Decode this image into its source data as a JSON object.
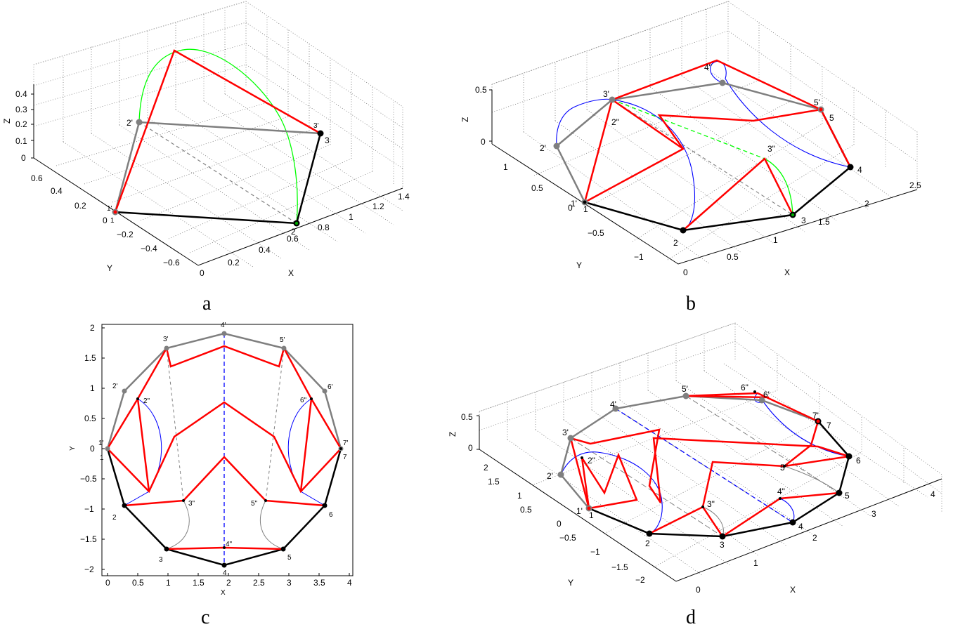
{
  "figure": {
    "captions": [
      "a",
      "b",
      "c",
      "d"
    ],
    "colors": {
      "original_polygon": "#000000",
      "reflected_polygon": "#7f7f7f",
      "folded_chain": "#ff0000",
      "arc_blue": "#0000ff",
      "arc_green": "#00ff00",
      "arc_gray": "#808080",
      "guide_gray": "#808080"
    }
  },
  "panels": {
    "a": {
      "xlabel": "X",
      "ylabel": "Y",
      "zlabel": "Z",
      "xticks": [
        "0",
        "0.2",
        "0.4",
        "0.6",
        "0.8",
        "1",
        "1.2",
        "1.4"
      ],
      "yticks": [
        "−0.6",
        "−0.4",
        "−0.2",
        "0",
        "0.2",
        "0.4",
        "0.6"
      ],
      "zticks": [
        "0",
        "0.1",
        "0.2",
        "0.3",
        "0.4"
      ],
      "points": [
        "1'",
        "1",
        "2'",
        "2",
        "3'",
        "3"
      ]
    },
    "b": {
      "xlabel": "X",
      "ylabel": "Y",
      "zlabel": "Z",
      "xticks": [
        "0",
        "0.5",
        "1",
        "1.5",
        "2",
        "2.5"
      ],
      "yticks": [
        "−1",
        "−0.5",
        "0",
        "0.5",
        "1"
      ],
      "zticks": [
        "0",
        "0.5"
      ],
      "points": [
        "1'",
        "1",
        "2'",
        "2\"",
        "2",
        "3'",
        "3\"",
        "3",
        "4\"",
        "4",
        "5'",
        "5"
      ]
    },
    "c": {
      "xlabel": "X",
      "ylabel": "Y",
      "xticks": [
        "0",
        "0.5",
        "1",
        "1.5",
        "2",
        "2.5",
        "3",
        "3.5",
        "4"
      ],
      "yticks": [
        "−2",
        "−1.5",
        "−1",
        "−0.5",
        "0",
        "0.5",
        "1",
        "1.5",
        "2"
      ],
      "points": [
        "1'",
        "1",
        "2'",
        "2\"",
        "2",
        "3'",
        "3\"",
        "3",
        "4'",
        "4\"",
        "4",
        "5'",
        "5\"",
        "5",
        "6'",
        "6\"",
        "6",
        "7'",
        "7"
      ]
    },
    "d": {
      "xlabel": "X",
      "ylabel": "Y",
      "zlabel": "Z",
      "xticks": [
        "0",
        "1",
        "2",
        "3",
        "4"
      ],
      "yticks": [
        "−2",
        "−1.5",
        "−1",
        "−0.5",
        "0",
        "0.5",
        "1",
        "1.5",
        "2"
      ],
      "zticks": [
        "0",
        "0.5"
      ],
      "points": [
        "1'",
        "1",
        "2'",
        "2\"",
        "2",
        "3'",
        "3\"",
        "3",
        "4'",
        "4\"",
        "4",
        "5'",
        "5\"",
        "5",
        "6\"",
        "6'",
        "6",
        "7'",
        "7"
      ]
    }
  }
}
